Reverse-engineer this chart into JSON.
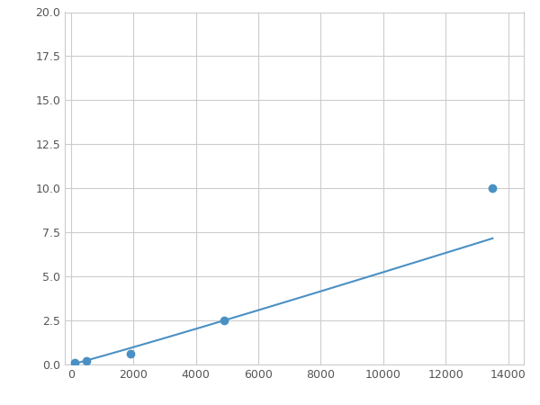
{
  "x_data": [
    125,
    500,
    1900,
    4900,
    13500
  ],
  "y_data": [
    0.08,
    0.18,
    0.6,
    2.5,
    10.0
  ],
  "line_color": "#4a90c4",
  "marker_color": "#4a90c4",
  "marker_size": 6,
  "xlim": [
    -200,
    14500
  ],
  "ylim": [
    0.0,
    20.0
  ],
  "xticks": [
    0,
    2000,
    4000,
    6000,
    8000,
    10000,
    12000,
    14000
  ],
  "yticks": [
    0.0,
    2.5,
    5.0,
    7.5,
    10.0,
    12.5,
    15.0,
    17.5,
    20.0
  ],
  "grid_color": "#cccccc",
  "background_color": "#ffffff",
  "fig_width": 6.0,
  "fig_height": 4.5,
  "dpi": 100
}
